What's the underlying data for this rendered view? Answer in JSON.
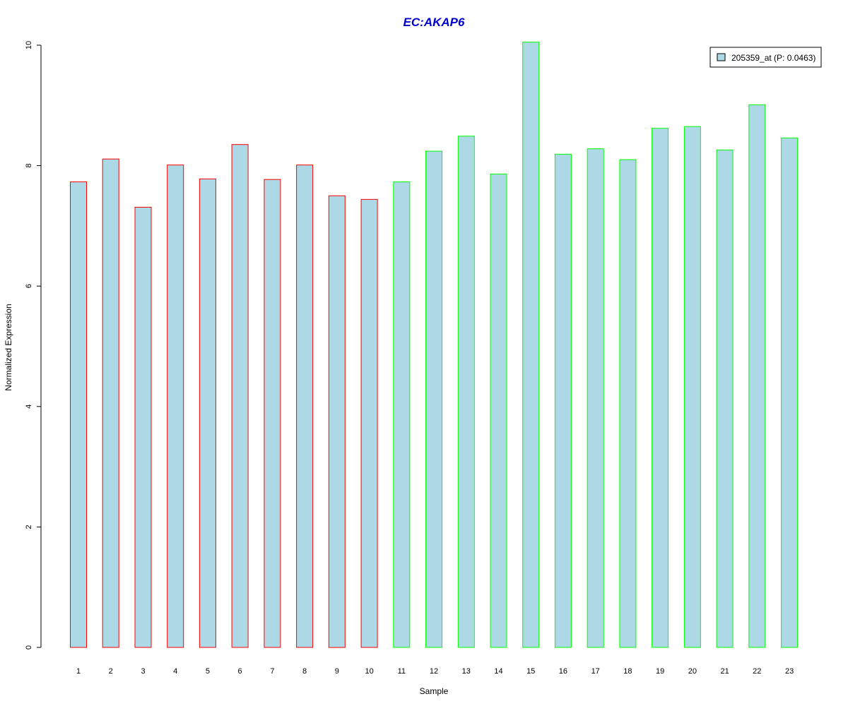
{
  "colors": {
    "bar_fill": "#add8e6",
    "group1_border": "#ff0000",
    "group2_border": "#00ff00",
    "title": "#0000cd",
    "axis": "#000000"
  },
  "chart_data": {
    "type": "bar",
    "title": "EC:AKAP6",
    "xlabel": "Sample",
    "ylabel": "Normalized Expression",
    "ylim": [
      0,
      10
    ],
    "yticks": [
      0,
      2,
      4,
      6,
      8,
      10
    ],
    "grid": false,
    "legend_position": "top-right",
    "categories": [
      "1",
      "2",
      "3",
      "4",
      "5",
      "6",
      "7",
      "8",
      "9",
      "10",
      "11",
      "12",
      "13",
      "14",
      "15",
      "16",
      "17",
      "18",
      "19",
      "20",
      "21",
      "22",
      "23"
    ],
    "series": [
      {
        "name": "205359_at (P: 0.0463)",
        "values": [
          7.73,
          8.11,
          7.31,
          8.01,
          7.78,
          8.35,
          7.77,
          8.01,
          7.5,
          7.44,
          7.73,
          8.24,
          8.49,
          7.86,
          10.05,
          8.19,
          8.28,
          8.1,
          8.62,
          8.65,
          8.26,
          9.01,
          8.46
        ]
      }
    ],
    "groups": [
      1,
      1,
      1,
      1,
      1,
      1,
      1,
      1,
      1,
      1,
      2,
      2,
      2,
      2,
      2,
      2,
      2,
      2,
      2,
      2,
      2,
      2,
      2
    ]
  }
}
